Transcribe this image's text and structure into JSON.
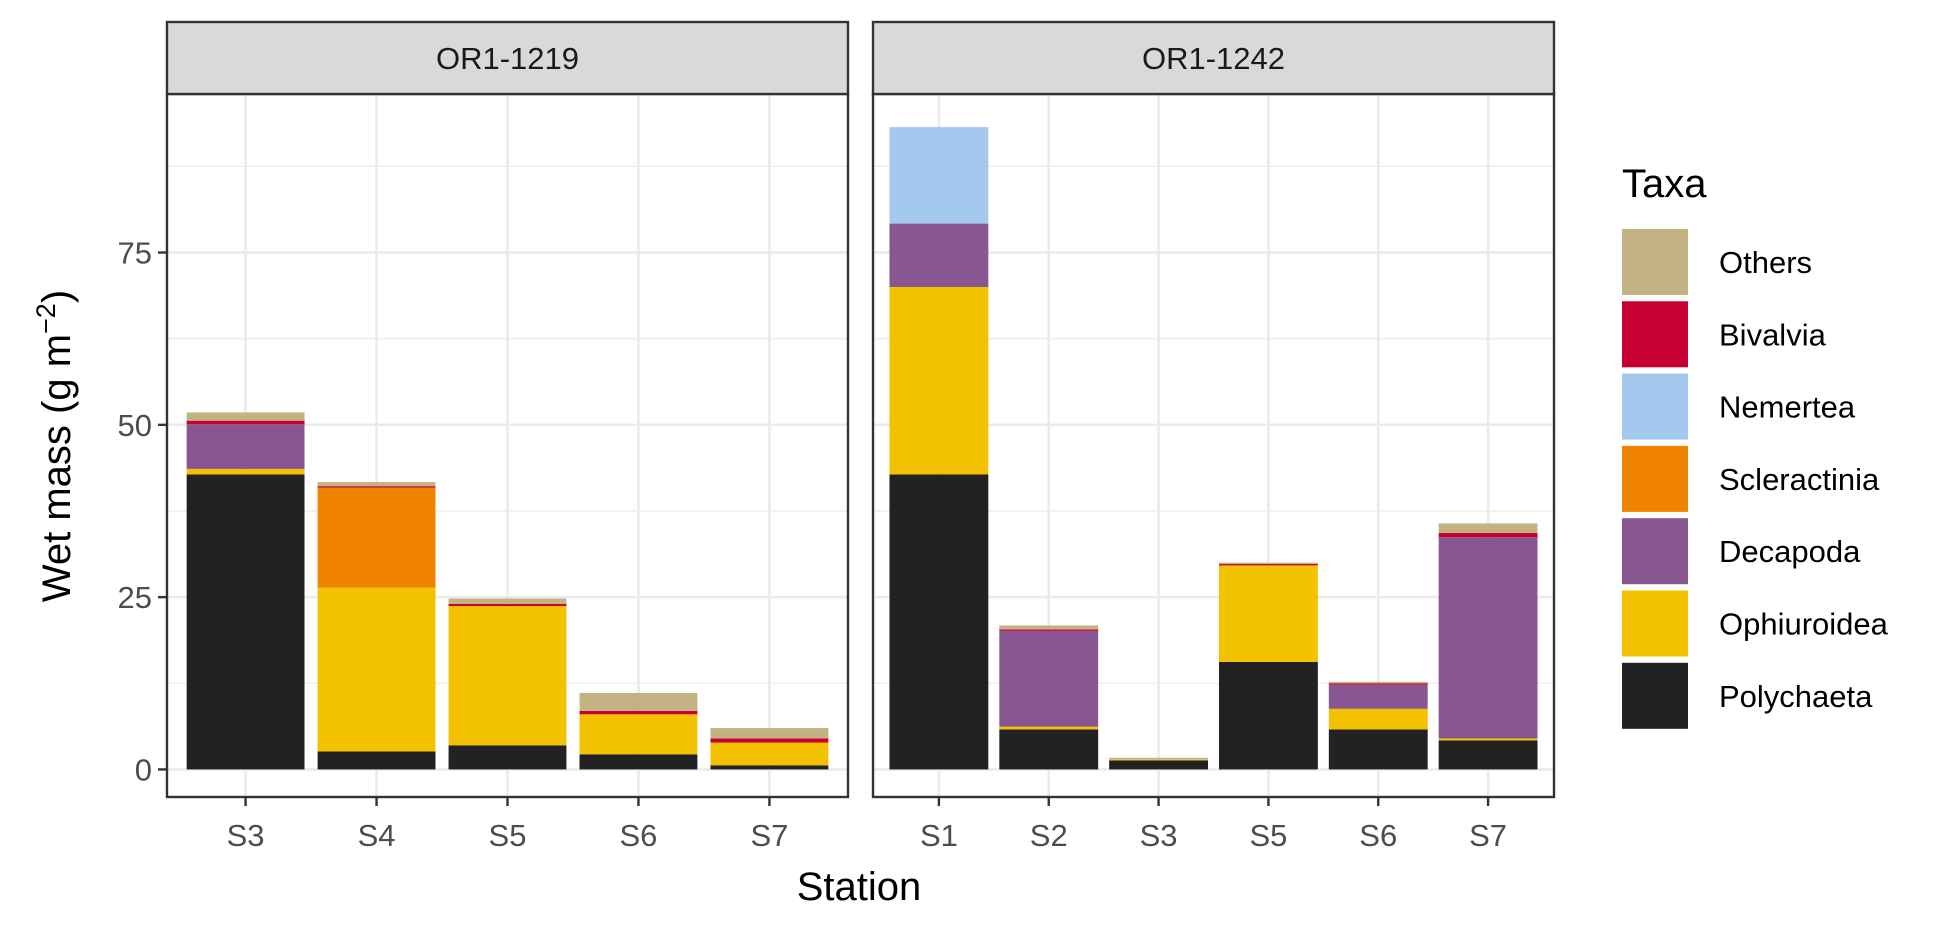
{
  "chart_data": {
    "type": "bar",
    "stacked": true,
    "xlabel": "Station",
    "ylabel": "Wet mass (g m",
    "ylabel_superscript": "−2",
    "ylabel_close": ")",
    "ylim": [
      -4,
      98
    ],
    "yticks": [
      0,
      25,
      50,
      75
    ],
    "grid": true,
    "legend": {
      "title": "Taxa",
      "position": "right"
    },
    "taxa_stack_order": [
      "Polychaeta",
      "Ophiuroidea",
      "Decapoda",
      "Scleractinia",
      "Nemertea",
      "Bivalvia",
      "Others"
    ],
    "legend_order": [
      "Others",
      "Bivalvia",
      "Nemertea",
      "Scleractinia",
      "Decapoda",
      "Ophiuroidea",
      "Polychaeta"
    ],
    "colors": {
      "Others": "#c4b382",
      "Bivalvia": "#c60032",
      "Nemertea": "#a3c9ef",
      "Scleractinia": "#f08300",
      "Decapoda": "#885691",
      "Ophiuroidea": "#f2c100",
      "Polychaeta": "#222222"
    },
    "facets": [
      {
        "name": "OR1-1219",
        "categories": [
          "S3",
          "S4",
          "S5",
          "S6",
          "S7"
        ],
        "series": [
          {
            "name": "Polychaeta",
            "values": [
              42.8,
              2.6,
              3.5,
              2.2,
              0.6
            ]
          },
          {
            "name": "Ophiuroidea",
            "values": [
              0.8,
              23.8,
              20.2,
              5.8,
              3.3
            ]
          },
          {
            "name": "Decapoda",
            "values": [
              6.5,
              0,
              0,
              0,
              0
            ]
          },
          {
            "name": "Scleractinia",
            "values": [
              0,
              14.5,
              0,
              0,
              0
            ]
          },
          {
            "name": "Nemertea",
            "values": [
              0,
              0,
              0,
              0,
              0
            ]
          },
          {
            "name": "Bivalvia",
            "values": [
              0.5,
              0.2,
              0.3,
              0.5,
              0.6
            ]
          },
          {
            "name": "Others",
            "values": [
              1.2,
              0.6,
              0.8,
              2.6,
              1.5
            ]
          }
        ]
      },
      {
        "name": "OR1-1242",
        "categories": [
          "S1",
          "S2",
          "S3",
          "S5",
          "S6",
          "S7"
        ],
        "series": [
          {
            "name": "Polychaeta",
            "values": [
              42.8,
              5.8,
              1.3,
              15.6,
              5.8,
              4.2
            ]
          },
          {
            "name": "Ophiuroidea",
            "values": [
              27.2,
              0.4,
              0.1,
              14.0,
              3.0,
              0.3
            ]
          },
          {
            "name": "Decapoda",
            "values": [
              9.2,
              13.9,
              0,
              0,
              3.5,
              29.2
            ]
          },
          {
            "name": "Scleractinia",
            "values": [
              0,
              0,
              0,
              0,
              0,
              0
            ]
          },
          {
            "name": "Nemertea",
            "values": [
              14.0,
              0,
              0,
              0,
              0,
              0
            ]
          },
          {
            "name": "Bivalvia",
            "values": [
              0,
              0.2,
              0,
              0.2,
              0.2,
              0.6
            ]
          },
          {
            "name": "Others",
            "values": [
              0,
              0.6,
              0.3,
              0.2,
              0.2,
              1.4
            ]
          }
        ]
      }
    ]
  }
}
